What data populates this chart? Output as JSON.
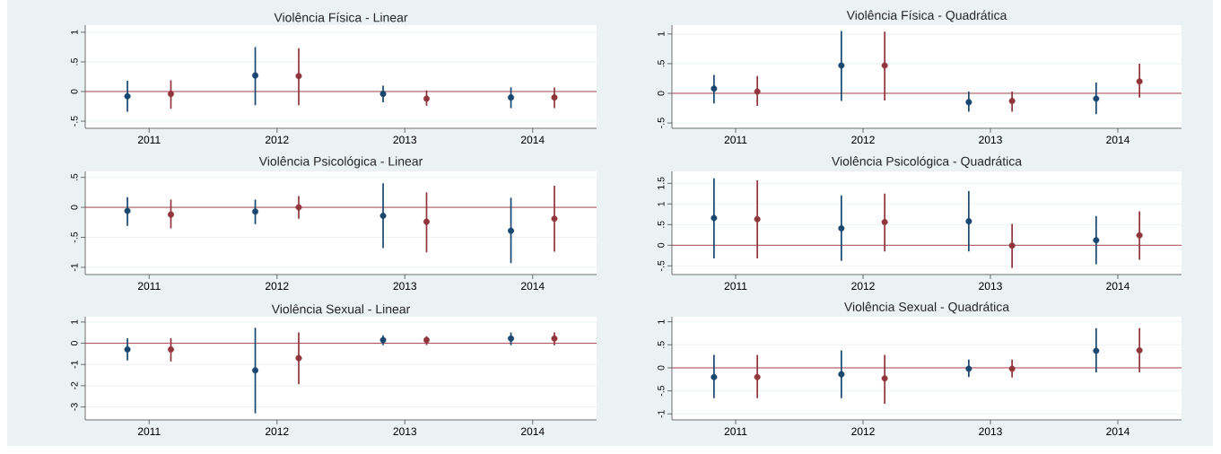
{
  "chart_data": [
    {
      "type": "scatter",
      "title": "Violência Física - Linear",
      "marker": "circle",
      "grid": "y",
      "xlim": [
        2010.5,
        2014.5
      ],
      "xticks": [
        2011,
        2012,
        2013,
        2014
      ],
      "ylim": [
        -0.62,
        1.12
      ],
      "yticks": [
        {
          "value": -0.5,
          "label": "-.5"
        },
        0,
        {
          "value": 0.5,
          "label": ".5"
        },
        1
      ],
      "ref_lines": [
        {
          "axis": "y",
          "value": 0,
          "color": "#a0383f"
        }
      ],
      "series": [
        {
          "color": "#1a476f",
          "x": [
            2010.83,
            2011.83,
            2012.83,
            2013.83
          ],
          "values": [
            -0.08,
            0.27,
            -0.04,
            -0.1
          ],
          "errors": [
            [
              -0.34,
              0.18
            ],
            [
              -0.23,
              0.75
            ],
            [
              -0.18,
              0.1
            ],
            [
              -0.28,
              0.07
            ]
          ]
        },
        {
          "color": "#90353b",
          "x": [
            2011.17,
            2012.17,
            2013.17,
            2014.17
          ],
          "values": [
            -0.04,
            0.26,
            -0.12,
            -0.1
          ],
          "errors": [
            [
              -0.29,
              0.19
            ],
            [
              -0.23,
              0.73
            ],
            [
              -0.24,
              0.02
            ],
            [
              -0.28,
              0.07
            ]
          ]
        }
      ]
    },
    {
      "type": "scatter",
      "title": "Violência Física - Quadrática",
      "marker": "circle",
      "grid": "y",
      "xlim": [
        2010.5,
        2014.5
      ],
      "xticks": [
        2011,
        2012,
        2013,
        2014
      ],
      "ylim": [
        -0.59,
        1.15
      ],
      "yticks": [
        {
          "value": -0.5,
          "label": "-.5"
        },
        0,
        {
          "value": 0.5,
          "label": ".5"
        },
        1
      ],
      "ref_lines": [
        {
          "axis": "y",
          "value": 0,
          "color": "#a0383f"
        }
      ],
      "series": [
        {
          "color": "#1a476f",
          "x": [
            2010.83,
            2011.83,
            2012.83,
            2013.83
          ],
          "values": [
            0.08,
            0.47,
            -0.15,
            -0.09
          ],
          "errors": [
            [
              -0.17,
              0.31
            ],
            [
              -0.13,
              1.05
            ],
            [
              -0.31,
              0.03
            ],
            [
              -0.35,
              0.18
            ]
          ]
        },
        {
          "color": "#90353b",
          "x": [
            2011.17,
            2012.17,
            2013.17,
            2014.17
          ],
          "values": [
            0.03,
            0.47,
            -0.13,
            0.2
          ],
          "errors": [
            [
              -0.21,
              0.29
            ],
            [
              -0.12,
              1.04
            ],
            [
              -0.31,
              0.03
            ],
            [
              -0.07,
              0.5
            ]
          ]
        }
      ]
    },
    {
      "type": "scatter",
      "title": "Violência Psicológica - Linear",
      "marker": "circle",
      "grid": "y",
      "xlim": [
        2010.5,
        2014.5
      ],
      "xticks": [
        2011,
        2012,
        2013,
        2014
      ],
      "ylim": [
        -1.12,
        0.6
      ],
      "yticks": [
        {
          "value": -1,
          "label": "-1"
        },
        {
          "value": -0.5,
          "label": "-.5"
        },
        0,
        {
          "value": 0.5,
          "label": ".5"
        }
      ],
      "ref_lines": [
        {
          "axis": "y",
          "value": 0,
          "color": "#a0383f"
        }
      ],
      "series": [
        {
          "color": "#1a476f",
          "x": [
            2010.83,
            2011.83,
            2012.83,
            2013.83
          ],
          "values": [
            -0.06,
            -0.07,
            -0.14,
            -0.39
          ],
          "errors": [
            [
              -0.31,
              0.17
            ],
            [
              -0.28,
              0.13
            ],
            [
              -0.68,
              0.4
            ],
            [
              -0.93,
              0.16
            ]
          ]
        },
        {
          "color": "#90353b",
          "x": [
            2011.17,
            2012.17,
            2013.17,
            2014.17
          ],
          "values": [
            -0.12,
            0,
            -0.24,
            -0.19
          ],
          "errors": [
            [
              -0.35,
              0.13
            ],
            [
              -0.19,
              0.19
            ],
            [
              -0.75,
              0.25
            ],
            [
              -0.74,
              0.36
            ]
          ]
        }
      ]
    },
    {
      "type": "scatter",
      "title": "Violência Psicológica - Quadrática",
      "marker": "circle",
      "grid": "y",
      "xlim": [
        2010.5,
        2014.5
      ],
      "xticks": [
        2011,
        2012,
        2013,
        2014
      ],
      "ylim": [
        -0.71,
        1.79
      ],
      "yticks": [
        {
          "value": -0.5,
          "label": "-.5"
        },
        0,
        {
          "value": 0.5,
          "label": ".5"
        },
        1,
        1.5
      ],
      "ref_lines": [
        {
          "axis": "y",
          "value": 0,
          "color": "#a0383f"
        }
      ],
      "series": [
        {
          "color": "#1a476f",
          "x": [
            2010.83,
            2011.83,
            2012.83,
            2013.83
          ],
          "values": [
            0.66,
            0.41,
            0.58,
            0.12
          ],
          "errors": [
            [
              -0.32,
              1.62
            ],
            [
              -0.38,
              1.21
            ],
            [
              -0.15,
              1.31
            ],
            [
              -0.46,
              0.71
            ]
          ]
        },
        {
          "color": "#90353b",
          "x": [
            2011.17,
            2012.17,
            2013.17,
            2014.17
          ],
          "values": [
            0.63,
            0.56,
            -0.01,
            0.24
          ],
          "errors": [
            [
              -0.32,
              1.57
            ],
            [
              -0.15,
              1.25
            ],
            [
              -0.55,
              0.52
            ],
            [
              -0.35,
              0.82
            ]
          ]
        }
      ]
    },
    {
      "type": "scatter",
      "title": "Violência Sexual - Linear",
      "marker": "circle",
      "grid": "y",
      "xlim": [
        2010.5,
        2014.5
      ],
      "xticks": [
        2011,
        2012,
        2013,
        2014
      ],
      "ylim": [
        -3.61,
        1.25
      ],
      "yticks": [
        -3,
        -2,
        -1,
        0,
        1
      ],
      "ref_lines": [
        {
          "axis": "y",
          "value": 0,
          "color": "#a0383f"
        }
      ],
      "series": [
        {
          "color": "#1a476f",
          "x": [
            2010.83,
            2011.83,
            2012.83,
            2013.83
          ],
          "values": [
            -0.29,
            -1.28,
            0.15,
            0.22
          ],
          "errors": [
            [
              -0.81,
              0.24
            ],
            [
              -3.3,
              0.73
            ],
            [
              -0.09,
              0.37
            ],
            [
              -0.09,
              0.51
            ]
          ]
        },
        {
          "color": "#90353b",
          "x": [
            2011.17,
            2012.17,
            2013.17,
            2014.17
          ],
          "values": [
            -0.29,
            -0.7,
            0.15,
            0.22
          ],
          "errors": [
            [
              -0.86,
              0.24
            ],
            [
              -1.93,
              0.51
            ],
            [
              -0.09,
              0.33
            ],
            [
              -0.09,
              0.51
            ]
          ]
        }
      ]
    },
    {
      "type": "scatter",
      "title": "Violência Sexual - Quadrática",
      "marker": "circle",
      "grid": "y",
      "xlim": [
        2010.5,
        2014.5
      ],
      "xticks": [
        2011,
        2012,
        2013,
        2014
      ],
      "ylim": [
        -1.13,
        1.11
      ],
      "yticks": [
        {
          "value": -1,
          "label": "-1"
        },
        {
          "value": -0.5,
          "label": "-.5"
        },
        0,
        {
          "value": 0.5,
          "label": ".5"
        },
        1
      ],
      "ref_lines": [
        {
          "axis": "y",
          "value": 0,
          "color": "#a0383f"
        }
      ],
      "series": [
        {
          "color": "#1a476f",
          "x": [
            2010.83,
            2011.83,
            2012.83,
            2013.83
          ],
          "values": [
            -0.2,
            -0.14,
            -0.02,
            0.37
          ],
          "errors": [
            [
              -0.66,
              0.28
            ],
            [
              -0.66,
              0.38
            ],
            [
              -0.2,
              0.18
            ],
            [
              -0.1,
              0.86
            ]
          ]
        },
        {
          "color": "#90353b",
          "x": [
            2011.17,
            2012.17,
            2013.17,
            2014.17
          ],
          "values": [
            -0.2,
            -0.23,
            -0.02,
            0.38
          ],
          "errors": [
            [
              -0.66,
              0.28
            ],
            [
              -0.78,
              0.28
            ],
            [
              -0.21,
              0.18
            ],
            [
              -0.1,
              0.86
            ]
          ]
        }
      ]
    }
  ]
}
